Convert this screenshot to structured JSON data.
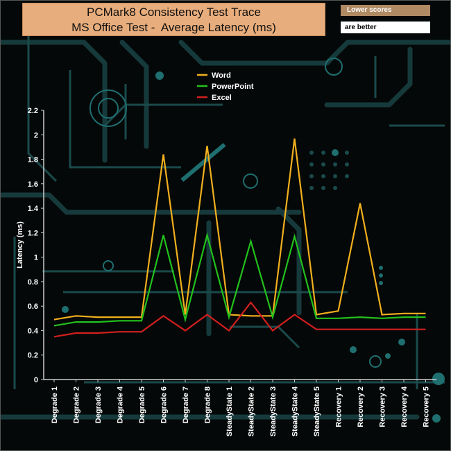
{
  "chart_data": {
    "type": "line",
    "title": "PCMark8 Consistency Test Trace",
    "subtitle": "MS Office Test -  Average Latency (ms)",
    "note_lines": [
      "Lower scores",
      "are better"
    ],
    "ylabel": "Latency (ms)",
    "xlabel": "",
    "ylim": [
      0,
      2.2
    ],
    "yticks": [
      "0",
      "0.2",
      "0.4",
      "0.6",
      "0.8",
      "1",
      "1.2",
      "1.4",
      "1.6",
      "1.8",
      "2",
      "2.2"
    ],
    "categories": [
      "Degrade 1",
      "Degrade 2",
      "Degrade 3",
      "Degrade 4",
      "Degrade 5",
      "Degrade 6",
      "Degrade 7",
      "Degrade 8",
      "SteadyState 1",
      "SteadyState 2",
      "SteadyState 3",
      "SteadyState 4",
      "SteadyState 5",
      "Recovery 1",
      "Recovery 2",
      "Recovery 3",
      "Recovery 4",
      "Recovery 5"
    ],
    "series": [
      {
        "name": "Word",
        "color": "#f2b01e",
        "values": [
          0.49,
          0.52,
          0.51,
          0.51,
          0.51,
          1.84,
          0.53,
          1.91,
          0.53,
          0.52,
          0.52,
          1.97,
          0.53,
          0.56,
          1.44,
          0.53,
          0.54,
          0.54
        ]
      },
      {
        "name": "PowerPoint",
        "color": "#22c21d",
        "values": [
          0.44,
          0.47,
          0.47,
          0.48,
          0.48,
          1.18,
          0.49,
          1.18,
          0.51,
          1.13,
          0.51,
          1.17,
          0.5,
          0.5,
          0.51,
          0.5,
          0.51,
          0.51
        ]
      },
      {
        "name": "Excel",
        "color": "#d31f1f",
        "values": [
          0.35,
          0.38,
          0.38,
          0.39,
          0.39,
          0.52,
          0.4,
          0.53,
          0.4,
          0.63,
          0.4,
          0.53,
          0.41,
          0.41,
          0.41,
          0.41,
          0.41,
          0.41
        ]
      }
    ],
    "legend": "top-center",
    "grid": false,
    "colors": {
      "background": "#050808",
      "title_box": "#e8ad7c",
      "note_top": "#b08a63",
      "circuit": "#163a3c",
      "circuit_bright": "#1f6e70",
      "axis": "#cccccc"
    }
  }
}
